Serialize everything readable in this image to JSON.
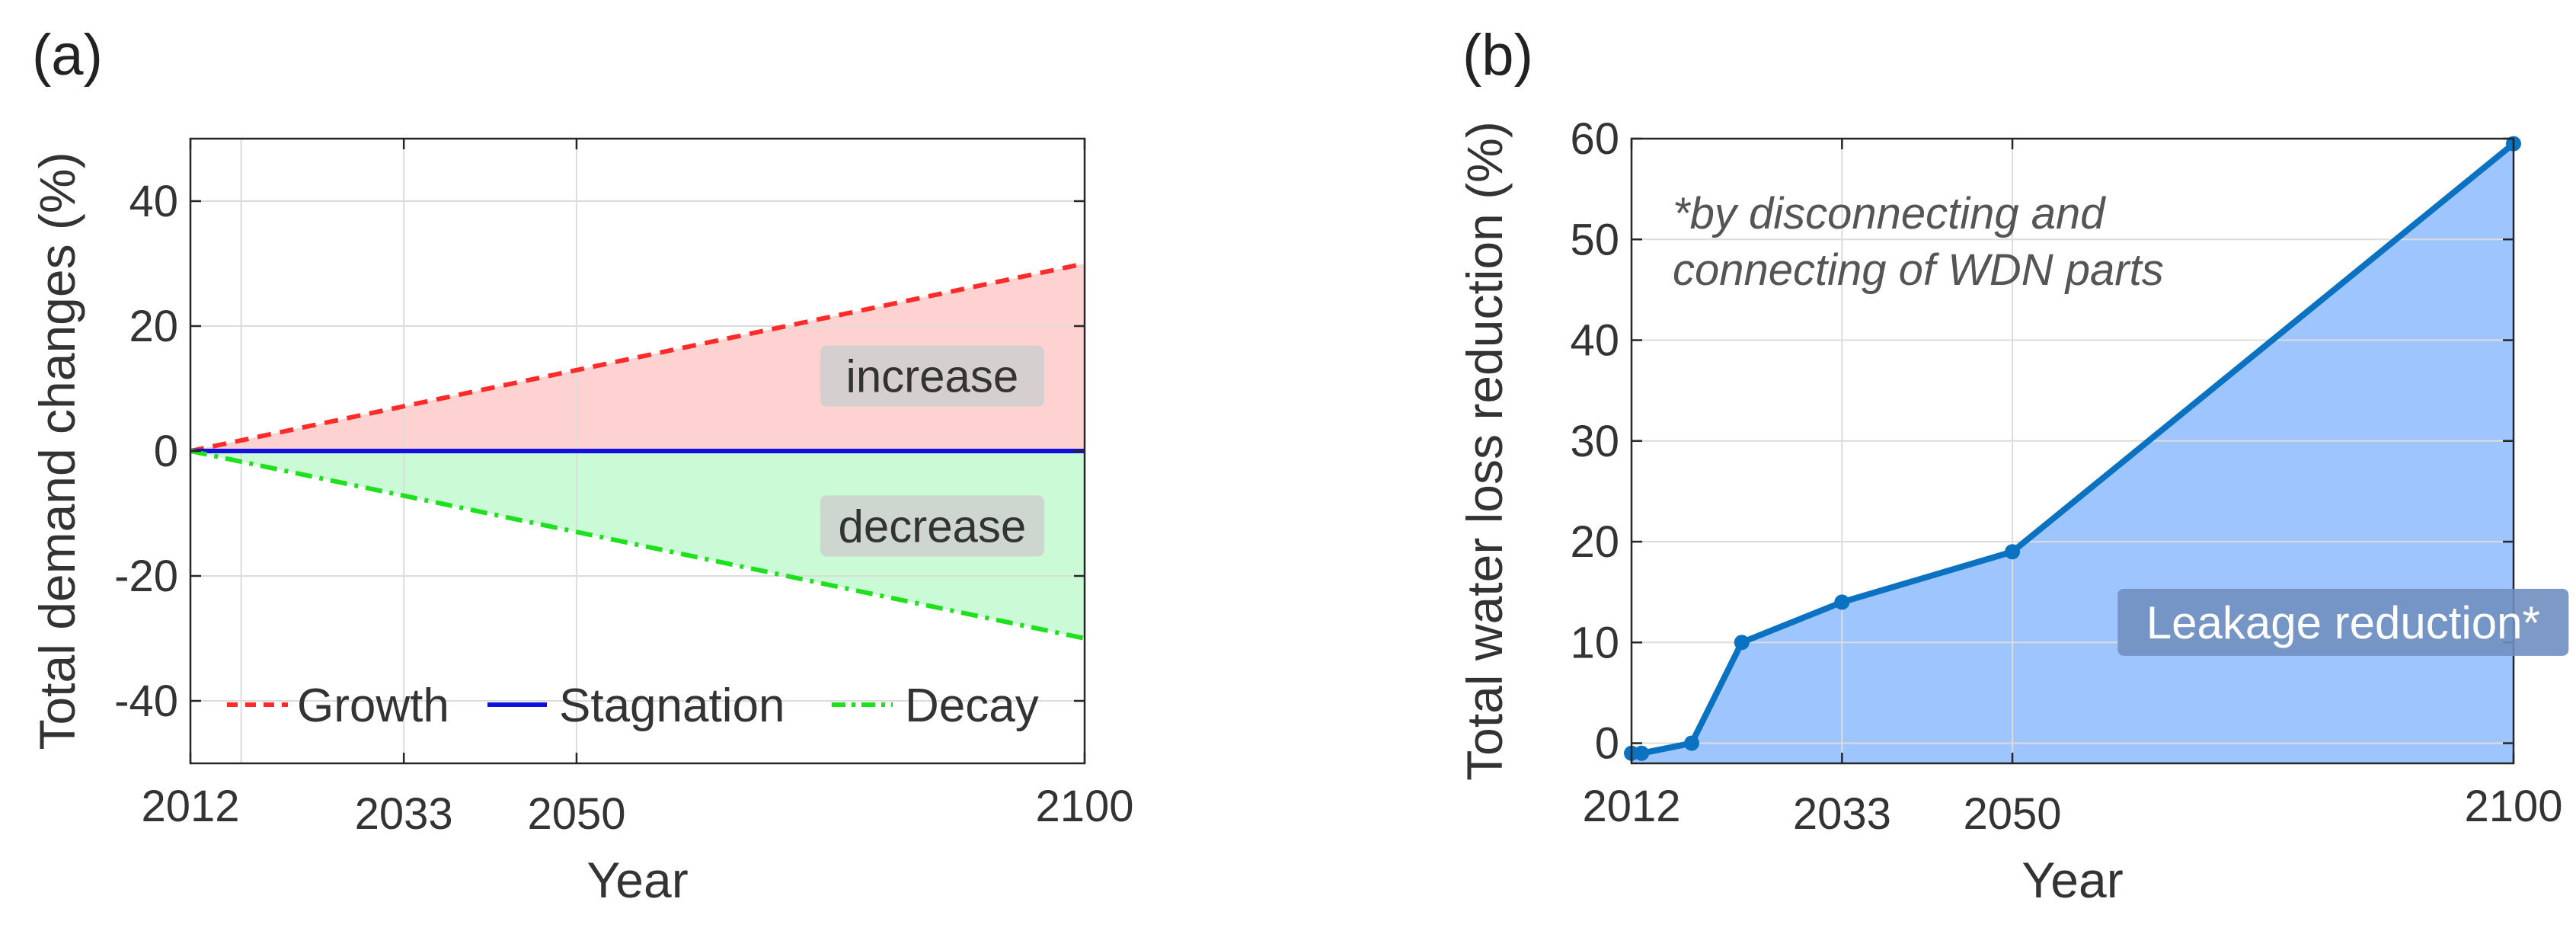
{
  "chart_data": [
    {
      "panel": "(a)",
      "type": "line",
      "xlabel": "Year",
      "ylabel": "Total demand changes (%)",
      "xlim": [
        2012,
        2100
      ],
      "ylim": [
        -50,
        50
      ],
      "xticks": [
        2012,
        2033,
        2050,
        2100
      ],
      "xgrid": [
        2012,
        2017,
        2033,
        2050
      ],
      "yticks": [
        -40,
        -20,
        0,
        20,
        40
      ],
      "ytick_labels": [
        "-40",
        "-20",
        "0",
        "20",
        "40"
      ],
      "grid": true,
      "legend_position": "bottom-inside",
      "series": [
        {
          "name": "Growth",
          "style": "dashed",
          "color": "#ff2a2a",
          "x": [
            2012,
            2100
          ],
          "y": [
            0,
            30
          ]
        },
        {
          "name": "Stagnation",
          "style": "solid",
          "color": "#1010e0",
          "x": [
            2012,
            2100
          ],
          "y": [
            0,
            0
          ]
        },
        {
          "name": "Decay",
          "style": "dash-dot",
          "color": "#1ee01e",
          "x": [
            2012,
            2100
          ],
          "y": [
            0,
            -30
          ]
        }
      ],
      "regions": [
        {
          "label": "increase",
          "between": [
            "Stagnation",
            "Growth"
          ],
          "color": "#ffd2d2",
          "label_at": [
            2085,
            12
          ]
        },
        {
          "label": "decrease",
          "between": [
            "Decay",
            "Stagnation"
          ],
          "color": "#cbfad6",
          "label_at": [
            2085,
            -12
          ]
        }
      ]
    },
    {
      "panel": "(b)",
      "type": "area",
      "xlabel": "Year",
      "ylabel": "Total water loss reduction (%)",
      "xlim": [
        2012,
        2100
      ],
      "ylim": [
        -2,
        60
      ],
      "xticks": [
        2012,
        2033,
        2050,
        2100
      ],
      "xgrid": [
        2012,
        2033,
        2050
      ],
      "yticks": [
        0,
        10,
        20,
        30,
        40,
        50,
        60
      ],
      "ytick_labels": [
        "0",
        "10",
        "20",
        "30",
        "40",
        "50",
        "60"
      ],
      "grid": true,
      "series": [
        {
          "name": "Leakage reduction*",
          "color": "#0b72c2",
          "fill": "#9fc5ff",
          "x": [
            2012,
            2013,
            2018,
            2023,
            2033,
            2050,
            2100
          ],
          "y": [
            -1,
            -1,
            0,
            10,
            14,
            19,
            59.5
          ]
        }
      ],
      "annotation": [
        "*by disconnecting and",
        "connecting of WDN parts"
      ],
      "area_label": "Leakage reduction*",
      "area_label_at": [
        2083,
        12
      ]
    }
  ]
}
